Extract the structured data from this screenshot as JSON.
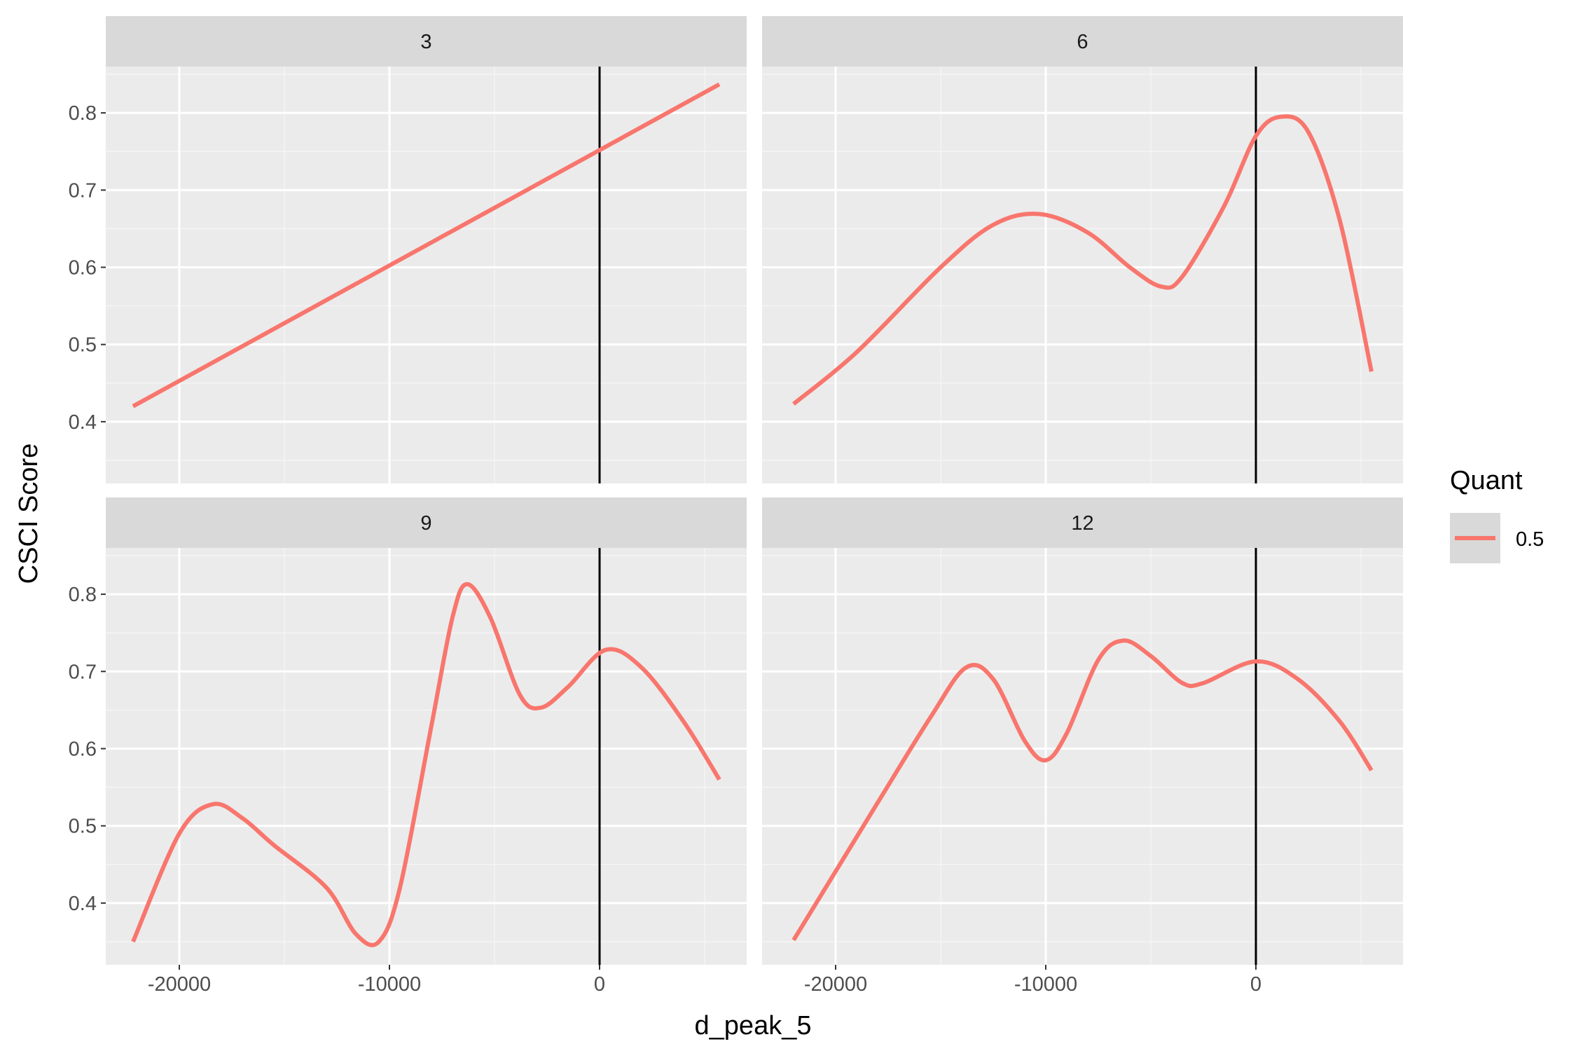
{
  "chart_data": {
    "type": "line",
    "facet_variable": "",
    "xlabel": "d_peak_5",
    "ylabel": "CSCI Score",
    "xlim": [
      -23500,
      7000
    ],
    "ylim": [
      0.32,
      0.86
    ],
    "x_ticks": [
      -20000,
      -10000,
      0
    ],
    "x_tick_labels": [
      "-20000",
      "-10000",
      "0"
    ],
    "y_ticks": [
      0.4,
      0.5,
      0.6,
      0.7,
      0.8
    ],
    "y_tick_labels": [
      "0.4",
      "0.5",
      "0.6",
      "0.7",
      "0.8"
    ],
    "vline_x": 0,
    "grid": true,
    "legend": {
      "title": "Quant",
      "position": "right",
      "entries": [
        {
          "label": "0.5",
          "color": "#F8766D"
        }
      ]
    },
    "panels": [
      {
        "label": "3",
        "series": [
          {
            "name": "0.5",
            "points": [
              [
                -22200,
                0.42
              ],
              [
                5700,
                0.837
              ]
            ]
          }
        ]
      },
      {
        "label": "6",
        "series": [
          {
            "name": "0.5",
            "points": [
              [
                -22000,
                0.423
              ],
              [
                -19000,
                0.49
              ],
              [
                -15000,
                0.6
              ],
              [
                -12500,
                0.655
              ],
              [
                -10300,
                0.669
              ],
              [
                -8000,
                0.645
              ],
              [
                -6000,
                0.6
              ],
              [
                -4500,
                0.575
              ],
              [
                -3500,
                0.588
              ],
              [
                -1500,
                0.68
              ],
              [
                0,
                0.77
              ],
              [
                1200,
                0.795
              ],
              [
                2500,
                0.775
              ],
              [
                4000,
                0.66
              ],
              [
                5500,
                0.465
              ]
            ]
          }
        ]
      },
      {
        "label": "9",
        "series": [
          {
            "name": "0.5",
            "points": [
              [
                -22200,
                0.35
              ],
              [
                -20000,
                0.49
              ],
              [
                -18400,
                0.528
              ],
              [
                -17000,
                0.51
              ],
              [
                -15500,
                0.475
              ],
              [
                -13000,
                0.42
              ],
              [
                -11600,
                0.36
              ],
              [
                -10500,
                0.35
              ],
              [
                -9500,
                0.42
              ],
              [
                -8000,
                0.63
              ],
              [
                -7000,
                0.77
              ],
              [
                -6300,
                0.813
              ],
              [
                -5200,
                0.77
              ],
              [
                -3800,
                0.67
              ],
              [
                -2800,
                0.653
              ],
              [
                -1500,
                0.68
              ],
              [
                300,
                0.728
              ],
              [
                2000,
                0.705
              ],
              [
                4000,
                0.635
              ],
              [
                5700,
                0.56
              ]
            ]
          }
        ]
      },
      {
        "label": "12",
        "series": [
          {
            "name": "0.5",
            "points": [
              [
                -22000,
                0.352
              ],
              [
                -18000,
                0.53
              ],
              [
                -15500,
                0.64
              ],
              [
                -13800,
                0.705
              ],
              [
                -12500,
                0.69
              ],
              [
                -11000,
                0.61
              ],
              [
                -10000,
                0.585
              ],
              [
                -9000,
                0.62
              ],
              [
                -7500,
                0.715
              ],
              [
                -6300,
                0.74
              ],
              [
                -5000,
                0.72
              ],
              [
                -3500,
                0.685
              ],
              [
                -2500,
                0.685
              ],
              [
                0,
                0.713
              ],
              [
                2000,
                0.69
              ],
              [
                4000,
                0.635
              ],
              [
                5500,
                0.572
              ]
            ]
          }
        ]
      }
    ]
  },
  "colors": {
    "panel_background": "#EBEBEB",
    "strip_background": "#D9D9D9",
    "grid_major": "#FFFFFF",
    "grid_minor": "#F4F4F4",
    "series": "#F8766D",
    "vline": "#000000"
  }
}
